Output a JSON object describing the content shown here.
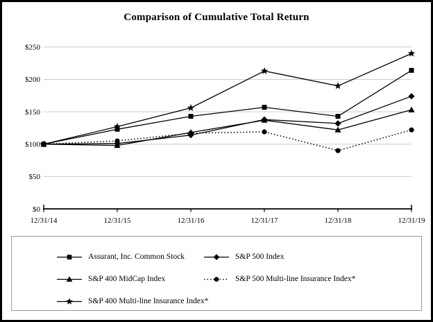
{
  "title": "Comparison of Cumulative Total Return",
  "chart_data": {
    "type": "line",
    "x": [
      "12/31/14",
      "12/31/15",
      "12/31/16",
      "12/31/17",
      "12/31/18",
      "12/31/19"
    ],
    "yticks": [
      {
        "value": 0,
        "label": "$0"
      },
      {
        "value": 50,
        "label": "$50"
      },
      {
        "value": 100,
        "label": "$100"
      },
      {
        "value": 150,
        "label": "$150"
      },
      {
        "value": 200,
        "label": "$200"
      },
      {
        "value": 250,
        "label": "$250"
      }
    ],
    "ylim": [
      0,
      250
    ],
    "grid": "horizontal-gray-lines",
    "legend_position": "boxed-below-two-columns",
    "series": [
      {
        "name": "Assurant, Inc. Common Stock",
        "marker": "square",
        "line": "solid",
        "values": [
          100,
          123,
          143,
          157,
          143,
          214
        ]
      },
      {
        "name": "S&P 500 Index",
        "marker": "diamond",
        "line": "solid",
        "values": [
          100,
          101,
          114,
          138,
          132,
          174
        ]
      },
      {
        "name": "S&P 400 MidCap Index",
        "marker": "triangle",
        "line": "solid",
        "values": [
          100,
          98,
          118,
          137,
          122,
          153
        ]
      },
      {
        "name": "S&P 500 Multi-line Insurance Index*",
        "marker": "circle",
        "line": "dotted",
        "values": [
          100,
          105,
          117,
          119,
          90,
          122
        ]
      },
      {
        "name": "S&P 400 Multi-line Insurance Index*",
        "marker": "star",
        "line": "solid",
        "values": [
          100,
          127,
          156,
          213,
          190,
          240
        ]
      }
    ],
    "legend_layout_rows": [
      [
        0,
        1
      ],
      [
        2,
        3
      ],
      [
        4
      ]
    ]
  },
  "colors": {
    "series": "#000000",
    "grid": "#cccccc",
    "axis": "#000000",
    "legend_border": "#999999",
    "frame_border": "#000000",
    "background": "#ffffff"
  }
}
